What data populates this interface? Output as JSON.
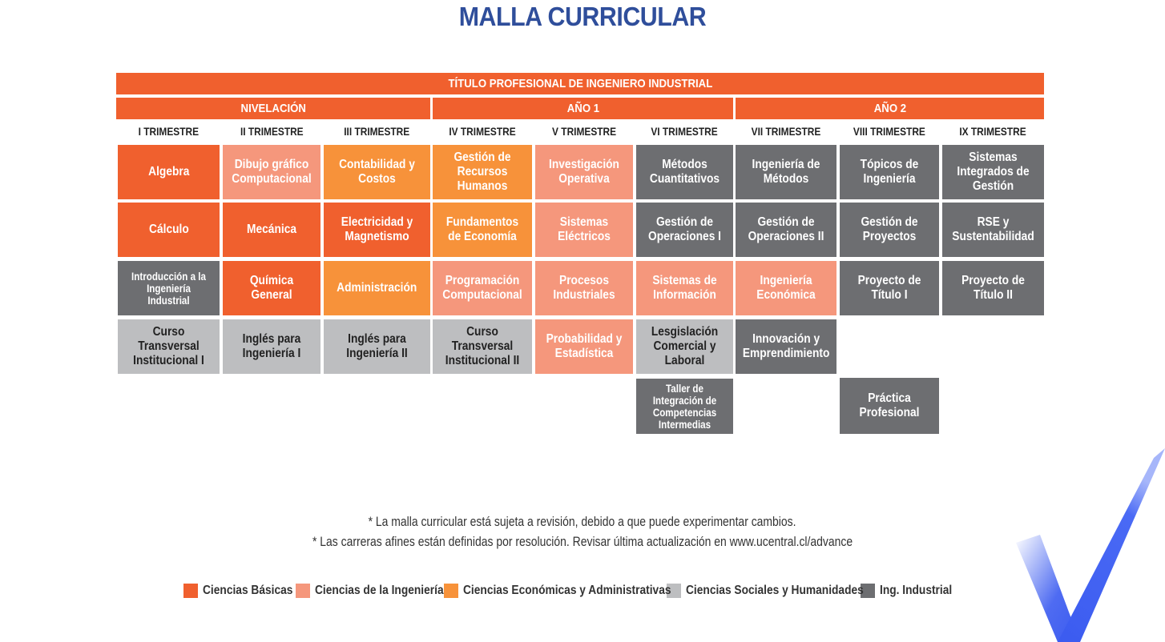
{
  "title": "MALLA CURRICULAR",
  "banner": "TÍTULO PROFESIONAL DE INGENIERO INDUSTRIAL",
  "groups": [
    "NIVELACIÓN",
    "AÑO 1",
    "AÑO 2"
  ],
  "trimesters": [
    "I TRIMESTRE",
    "II TRIMESTRE",
    "III TRIMESTRE",
    "IV TRIMESTRE",
    "V TRIMESTRE",
    "VI TRIMESTRE",
    "VII TRIMESTRE",
    "VIII TRIMESTRE",
    "IX TRIMESTRE"
  ],
  "courses": {
    "algebra": "Algebra",
    "dibujo": "Dibujo gráfico Computacional",
    "contabilidad": "Contabilidad y Costos",
    "rrhh": "Gestión de Recursos Humanos",
    "investigacion": "Investigación Operativa",
    "metodos_cuant": "Métodos Cuantitativos",
    "ing_metodos": "Ingeniería de Métodos",
    "topicos": "Tópicos de Ingeniería",
    "sistemas_integrados": "Sistemas Integrados de Gestión",
    "calculo": "Cálculo",
    "mecanica": "Mecánica",
    "electricidad": "Electricidad y Magnetismo",
    "fund_economia": "Fundamentos de Economía",
    "sist_electricos": "Sistemas Eléctricos",
    "gest_op1": "Gestión de Operaciones I",
    "gest_op2": "Gestión de Operaciones II",
    "gest_proyectos": "Gestión de Proyectos",
    "rse": "RSE y Sustentabilidad",
    "intro_ing": "Introducción a la Ingeniería Industrial",
    "quimica": "Química General",
    "administracion": "Administración",
    "programacion": "Programación Computacional",
    "procesos": "Procesos Industriales",
    "sist_informacion": "Sistemas de Información",
    "ing_economica": "Ingeniería Económica",
    "proy_titulo1": "Proyecto de Título I",
    "proy_titulo2": "Proyecto de Título II",
    "curso_trans1": "Curso Transversal Institucional I",
    "ingles1": "Inglés para Ingeniería I",
    "ingles2": "Inglés para Ingeniería II",
    "curso_trans2": "Curso Transversal Institucional II",
    "probabilidad": "Probabilidad y Estadística",
    "legislacion": "Lesgislación Comercial y Laboral",
    "innovacion": "Innovación y Emprendimiento",
    "taller": "Taller de Integración de Competencias Intermedias",
    "practica": "Práctica Profesional"
  },
  "notes": [
    "* La  malla curricular está sujeta a revisión, debido a que puede experimentar cambios.",
    "* Las carreras afines están definidas por resolución. Revisar última actualización en www.ucentral.cl/advance"
  ],
  "legend": {
    "basic": "Ciencias Básicas",
    "eng": "Ciencias de la Ingeniería",
    "econ": "Ciencias Económicas y Administrativas",
    "soc": "Ciencias Sociales y Humanidades",
    "ind": "Ing. Industrial"
  },
  "colors": {
    "basic": "#f0602e",
    "eng": "#f5977c",
    "econ": "#f7923a",
    "soc": "#bdbec0",
    "ind": "#6d6e71",
    "title": "#2f4e9b",
    "check": "#3b5bf0"
  },
  "icons": {
    "logo": "checkmark-logo-icon"
  }
}
